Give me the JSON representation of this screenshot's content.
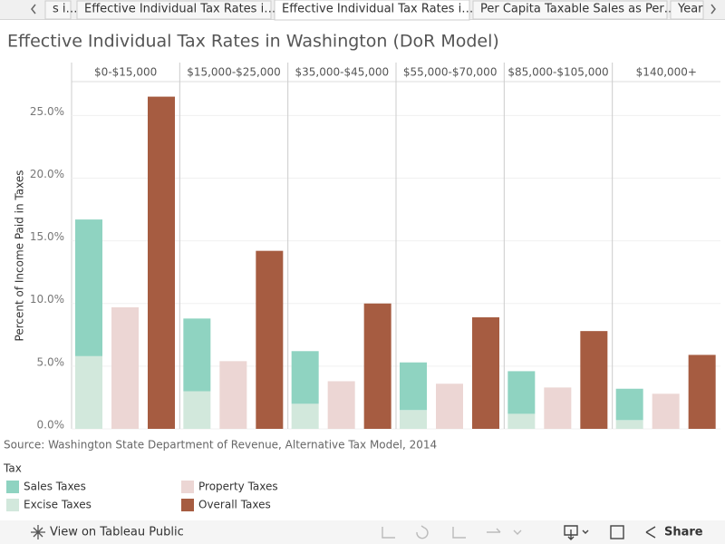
{
  "tabs": [
    "s i…",
    "Effective Individual Tax Rates i…",
    "Effective Individual Tax Rates i…",
    "Per Capita Taxable Sales as Per…",
    "Year"
  ],
  "chart_data": {
    "type": "bar",
    "title": "Effective Individual Tax Rates in Washington (DoR Model)",
    "y_label": "Percent of Income Paid in Taxes",
    "categories": [
      "$0-$15,000",
      "$15,000-$25,000",
      "$35,000-$45,000",
      "$55,000-$70,000",
      "$85,000-$105,000",
      "$140,000+"
    ],
    "series": [
      {
        "name": "Excise Taxes",
        "color": "#d2e8dc",
        "values": [
          5.8,
          3.0,
          2.0,
          1.5,
          1.2,
          0.7
        ]
      },
      {
        "name": "Sales Taxes",
        "color": "#8fd3c1",
        "values": [
          10.9,
          5.8,
          4.2,
          3.8,
          3.4,
          2.5
        ]
      },
      {
        "name": "Property Taxes",
        "color": "#ecd6d4",
        "values": [
          9.7,
          5.4,
          3.8,
          3.6,
          3.3,
          2.8
        ]
      },
      {
        "name": "Overall Taxes",
        "color": "#a65c41",
        "values": [
          26.5,
          14.2,
          10.0,
          8.9,
          7.8,
          5.9
        ]
      }
    ],
    "ylim": [
      0,
      27.7
    ],
    "yticks": [
      {
        "value": 0,
        "label": "0.0%"
      },
      {
        "value": 5,
        "label": "5.0%"
      },
      {
        "value": 10,
        "label": "10.0%"
      },
      {
        "value": 15,
        "label": "15.0%"
      },
      {
        "value": 20,
        "label": "20.0%"
      },
      {
        "value": 25,
        "label": "25.0%"
      }
    ],
    "grid": true,
    "source": "Source: Washington State Department of Revenue, Alternative Tax Model, 2014",
    "legend_title": "Tax"
  },
  "toolbar": {
    "view": "View on Tableau Public",
    "share": "Share"
  }
}
